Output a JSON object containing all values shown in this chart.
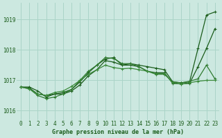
{
  "title": "",
  "xlabel": "Graphe pression niveau de la mer (hPa)",
  "background_color": "#cce8e0",
  "grid_color": "#aad4c8",
  "line_colors": [
    "#1a5c1a",
    "#1a5c1a",
    "#2e7a2e",
    "#3a8a3a"
  ],
  "ylim": [
    1015.7,
    1019.55
  ],
  "xlim": [
    -0.5,
    23.5
  ],
  "yticks": [
    1016,
    1017,
    1018,
    1019
  ],
  "xticks": [
    0,
    1,
    2,
    3,
    4,
    5,
    6,
    7,
    8,
    9,
    10,
    11,
    12,
    13,
    14,
    15,
    16,
    17,
    18,
    19,
    20,
    21,
    22,
    23
  ],
  "series": [
    [
      1016.78,
      1016.78,
      1016.65,
      1016.45,
      1016.55,
      1016.6,
      1016.7,
      1016.95,
      1017.25,
      1017.5,
      1017.7,
      1017.75,
      1017.5,
      1017.55,
      1017.5,
      1017.45,
      1017.4,
      1017.35,
      1016.95,
      1016.92,
      1016.95,
      1018.05,
      1019.15,
      1019.25
    ],
    [
      1016.78,
      1016.75,
      1016.55,
      1016.5,
      1016.55,
      1016.55,
      1016.65,
      1016.85,
      1017.15,
      1017.35,
      1017.65,
      1017.6,
      1017.5,
      1017.5,
      1017.45,
      1017.3,
      1017.25,
      1017.25,
      1016.9,
      1016.88,
      1016.9,
      1017.45,
      1018.05,
      1018.7
    ],
    [
      1016.78,
      1016.72,
      1016.5,
      1016.4,
      1016.45,
      1016.55,
      1016.7,
      1017.0,
      1017.3,
      1017.5,
      1017.75,
      1017.72,
      1017.55,
      1017.55,
      1017.45,
      1017.3,
      1017.2,
      1017.2,
      1016.95,
      1016.92,
      1016.97,
      1017.05,
      1017.5,
      1017.05
    ],
    [
      1016.78,
      1016.72,
      1016.55,
      1016.5,
      1016.6,
      1016.65,
      1016.8,
      1017.0,
      1017.2,
      1017.35,
      1017.5,
      1017.42,
      1017.38,
      1017.4,
      1017.35,
      1017.3,
      1017.22,
      1017.22,
      1016.92,
      1016.88,
      1016.92,
      1016.97,
      1017.0,
      1017.0
    ]
  ]
}
